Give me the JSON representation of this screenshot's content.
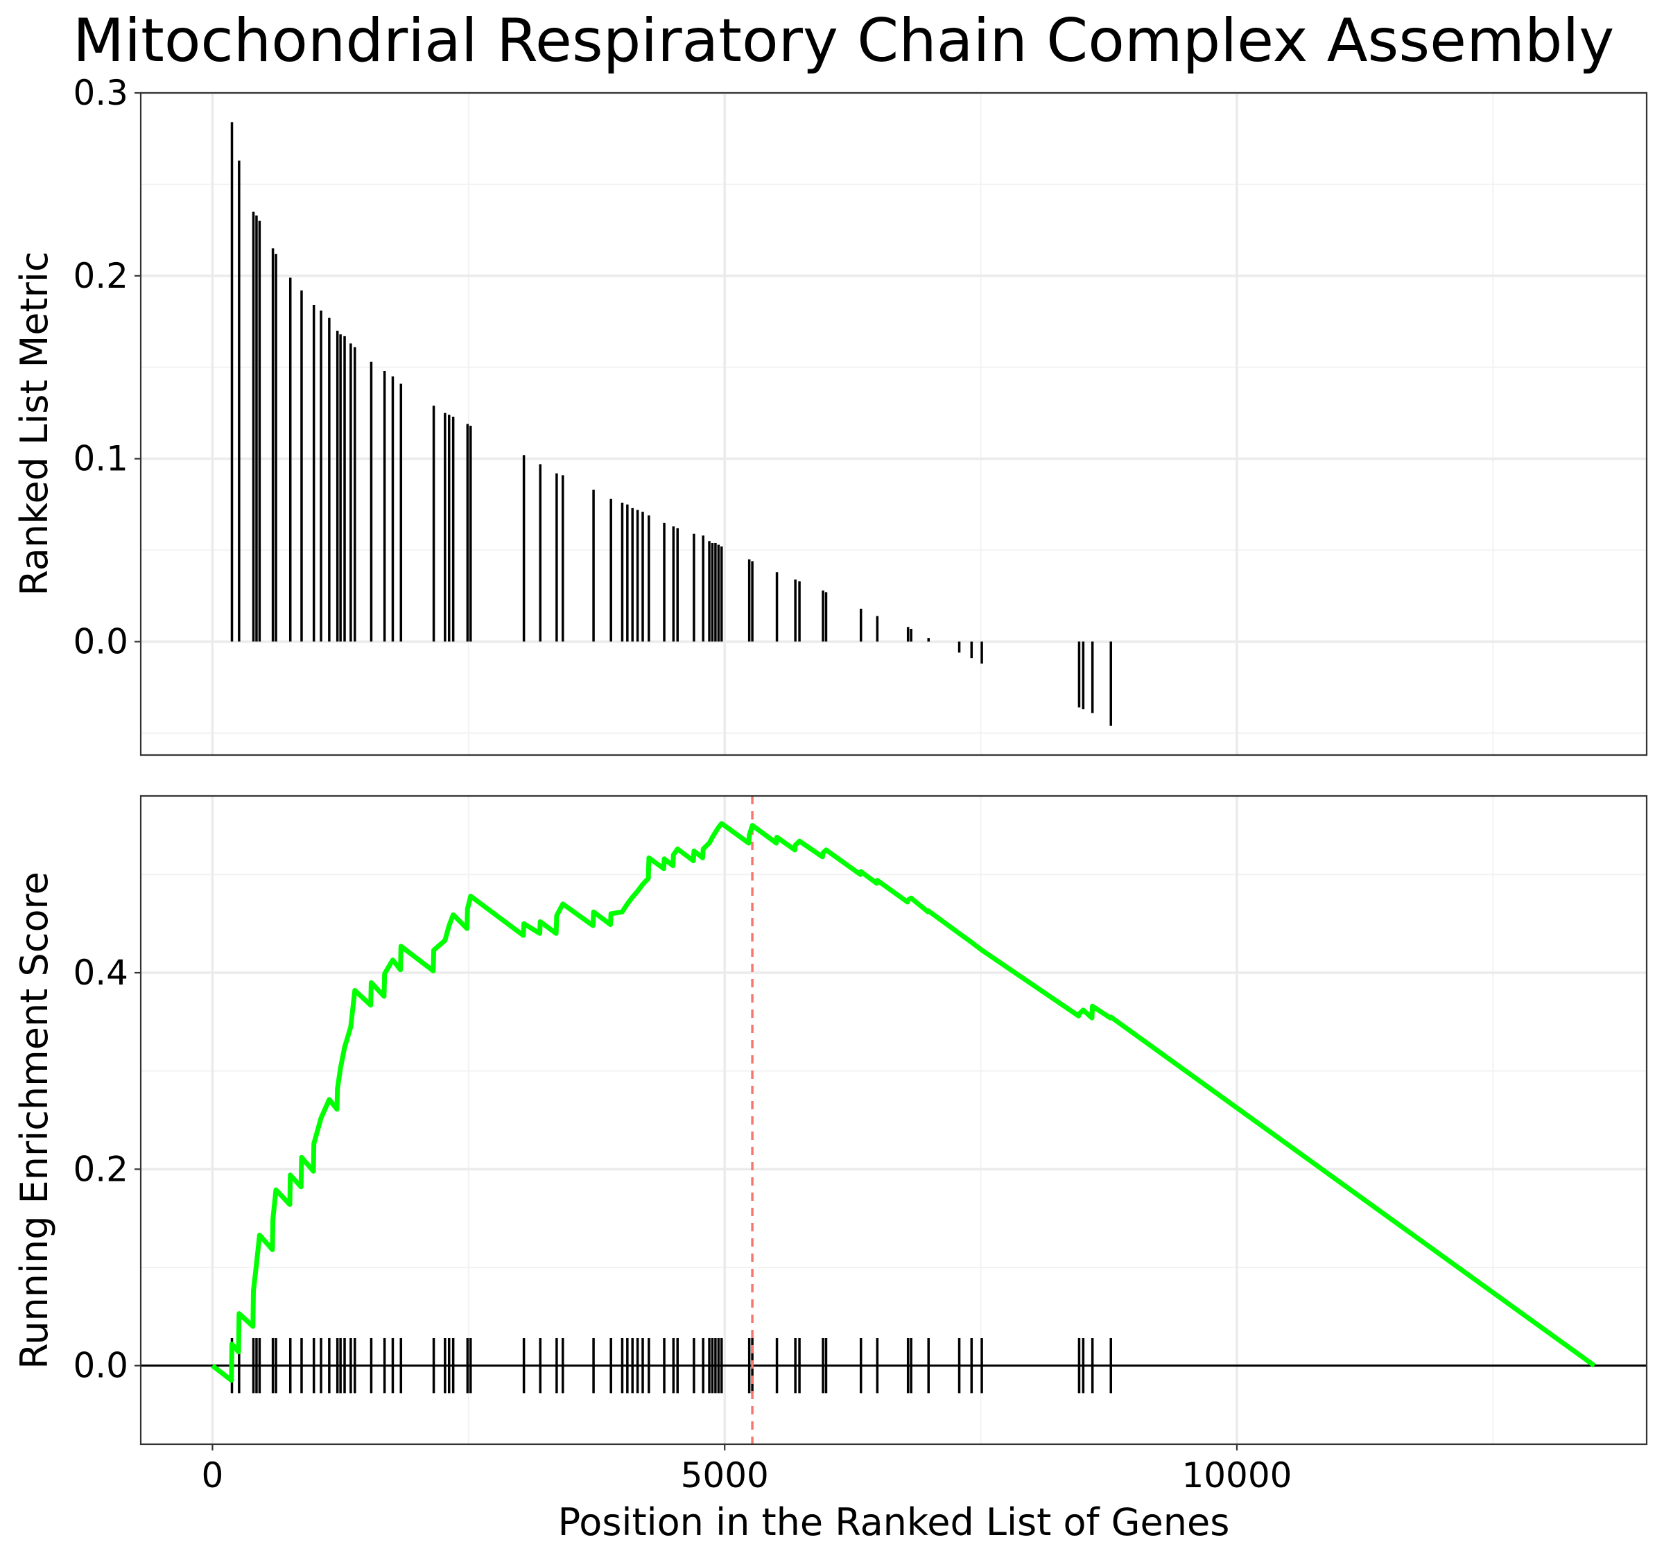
{
  "chart_data": [
    {
      "type": "bar",
      "title": "Mitochondrial Respiratory Chain Complex Assembly",
      "xlabel": "",
      "ylabel": "Ranked List Metric",
      "xlim": [
        -700,
        14000
      ],
      "ylim": [
        -0.062,
        0.3
      ],
      "y_ticks": [
        0.0,
        0.1,
        0.2,
        0.3
      ],
      "y_tick_labels": [
        "0.0",
        "0.1",
        "0.2",
        "0.3"
      ],
      "grid": true,
      "bars": [
        [
          190,
          0.284
        ],
        [
          260,
          0.263
        ],
        [
          400,
          0.235
        ],
        [
          430,
          0.233
        ],
        [
          460,
          0.23
        ],
        [
          590,
          0.215
        ],
        [
          620,
          0.212
        ],
        [
          760,
          0.199
        ],
        [
          870,
          0.192
        ],
        [
          990,
          0.184
        ],
        [
          1060,
          0.181
        ],
        [
          1140,
          0.177
        ],
        [
          1220,
          0.17
        ],
        [
          1250,
          0.168
        ],
        [
          1290,
          0.167
        ],
        [
          1350,
          0.163
        ],
        [
          1390,
          0.161
        ],
        [
          1550,
          0.153
        ],
        [
          1680,
          0.148
        ],
        [
          1760,
          0.145
        ],
        [
          1840,
          0.141
        ],
        [
          2160,
          0.129
        ],
        [
          2270,
          0.125
        ],
        [
          2310,
          0.124
        ],
        [
          2350,
          0.123
        ],
        [
          2490,
          0.119
        ],
        [
          2520,
          0.118
        ],
        [
          3040,
          0.102
        ],
        [
          3200,
          0.097
        ],
        [
          3360,
          0.092
        ],
        [
          3420,
          0.091
        ],
        [
          3720,
          0.083
        ],
        [
          3890,
          0.078
        ],
        [
          4000,
          0.076
        ],
        [
          4050,
          0.075
        ],
        [
          4100,
          0.073
        ],
        [
          4150,
          0.072
        ],
        [
          4200,
          0.071
        ],
        [
          4260,
          0.069
        ],
        [
          4410,
          0.065
        ],
        [
          4500,
          0.063
        ],
        [
          4540,
          0.062
        ],
        [
          4700,
          0.059
        ],
        [
          4790,
          0.058
        ],
        [
          4850,
          0.055
        ],
        [
          4880,
          0.054
        ],
        [
          4910,
          0.054
        ],
        [
          4940,
          0.053
        ],
        [
          4970,
          0.052
        ],
        [
          5240,
          0.045
        ],
        [
          5270,
          0.044
        ],
        [
          5510,
          0.038
        ],
        [
          5690,
          0.034
        ],
        [
          5730,
          0.033
        ],
        [
          5960,
          0.028
        ],
        [
          5990,
          0.027
        ],
        [
          6330,
          0.018
        ],
        [
          6490,
          0.014
        ],
        [
          6790,
          0.008
        ],
        [
          6820,
          0.007
        ],
        [
          6990,
          0.002
        ],
        [
          7290,
          -0.006
        ],
        [
          7410,
          -0.009
        ],
        [
          7510,
          -0.012
        ],
        [
          8460,
          -0.036
        ],
        [
          8500,
          -0.037
        ],
        [
          8590,
          -0.039
        ],
        [
          8770,
          -0.046
        ]
      ]
    },
    {
      "type": "line",
      "title": "",
      "xlabel": "Position in the Ranked List of Genes",
      "ylabel": "Running Enrichment Score",
      "xlim": [
        -700,
        14000
      ],
      "ylim": [
        -0.08,
        0.58
      ],
      "x_ticks": [
        0,
        5000,
        10000
      ],
      "x_tick_labels": [
        "0",
        "5000",
        "10000"
      ],
      "y_ticks": [
        0.0,
        0.2,
        0.4
      ],
      "y_tick_labels": [
        "0.0",
        "0.2",
        "0.4"
      ],
      "grid": true,
      "max_es_position": 5270,
      "series": [
        {
          "color": "#00ff00",
          "x": [
            0,
            185,
            190,
            255,
            260,
            395,
            400,
            430,
            460,
            585,
            590,
            620,
            755,
            760,
            865,
            870,
            985,
            990,
            1060,
            1140,
            1215,
            1220,
            1250,
            1290,
            1350,
            1390,
            1545,
            1550,
            1675,
            1680,
            1760,
            1835,
            1840,
            2155,
            2160,
            2270,
            2310,
            2350,
            2485,
            2490,
            2520,
            3035,
            3040,
            3195,
            3200,
            3355,
            3360,
            3420,
            3715,
            3720,
            3885,
            3890,
            4000,
            4050,
            4100,
            4150,
            4200,
            4255,
            4260,
            4405,
            4410,
            4495,
            4500,
            4540,
            4695,
            4700,
            4785,
            4790,
            4850,
            4880,
            4910,
            4940,
            4970,
            5235,
            5240,
            5270,
            5505,
            5510,
            5685,
            5690,
            5730,
            5955,
            5960,
            5990,
            6325,
            6330,
            6485,
            6490,
            6785,
            6790,
            6820,
            6985,
            6990,
            7290,
            7410,
            7510,
            8455,
            8460,
            8500,
            8585,
            8590,
            8765,
            8770,
            13490
          ],
          "values": [
            0.0,
            -0.015,
            0.022,
            0.014,
            0.053,
            0.04,
            0.076,
            0.104,
            0.133,
            0.118,
            0.149,
            0.179,
            0.164,
            0.194,
            0.182,
            0.212,
            0.198,
            0.226,
            0.252,
            0.271,
            0.261,
            0.282,
            0.303,
            0.324,
            0.345,
            0.382,
            0.367,
            0.39,
            0.376,
            0.399,
            0.413,
            0.403,
            0.427,
            0.402,
            0.423,
            0.433,
            0.448,
            0.459,
            0.445,
            0.465,
            0.478,
            0.438,
            0.45,
            0.44,
            0.452,
            0.44,
            0.458,
            0.47,
            0.448,
            0.462,
            0.449,
            0.46,
            0.462,
            0.47,
            0.477,
            0.483,
            0.49,
            0.496,
            0.517,
            0.506,
            0.516,
            0.509,
            0.52,
            0.526,
            0.514,
            0.524,
            0.517,
            0.526,
            0.532,
            0.538,
            0.543,
            0.548,
            0.552,
            0.532,
            0.54,
            0.55,
            0.532,
            0.538,
            0.525,
            0.53,
            0.534,
            0.518,
            0.522,
            0.525,
            0.5,
            0.503,
            0.491,
            0.494,
            0.472,
            0.474,
            0.476,
            0.462,
            0.463,
            0.44,
            0.431,
            0.423,
            0.356,
            0.358,
            0.362,
            0.354,
            0.366,
            0.354,
            0.355,
            0.0
          ]
        }
      ],
      "hit_positions": [
        190,
        260,
        400,
        430,
        460,
        590,
        620,
        760,
        870,
        990,
        1060,
        1140,
        1220,
        1250,
        1290,
        1350,
        1390,
        1550,
        1680,
        1760,
        1840,
        2160,
        2270,
        2310,
        2350,
        2490,
        2520,
        3040,
        3200,
        3360,
        3420,
        3720,
        3890,
        4000,
        4050,
        4100,
        4150,
        4200,
        4260,
        4410,
        4500,
        4540,
        4700,
        4790,
        4850,
        4880,
        4910,
        4940,
        4970,
        5240,
        5270,
        5510,
        5690,
        5730,
        5960,
        5990,
        6330,
        6490,
        6790,
        6820,
        6990,
        7290,
        7410,
        7510,
        8460,
        8500,
        8590,
        8770
      ]
    }
  ]
}
